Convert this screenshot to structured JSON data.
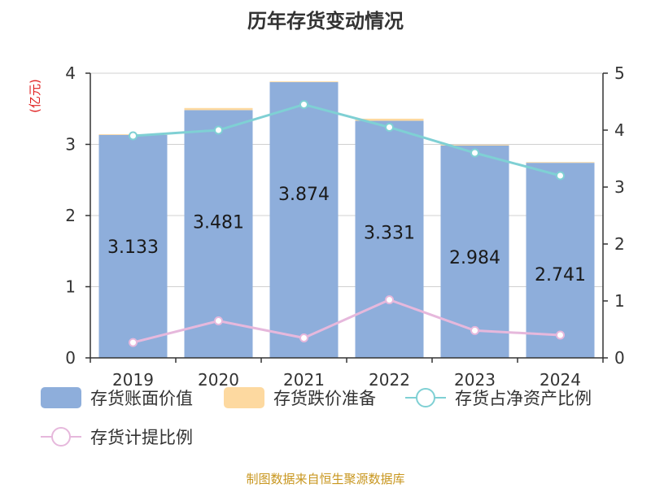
{
  "title": "历年存货变动情况",
  "footer": "制图数据来自恒生聚源数据库",
  "chart_data": {
    "type": "bar",
    "categories": [
      "2019",
      "2020",
      "2021",
      "2022",
      "2023",
      "2024"
    ],
    "y_left": {
      "unit": "(亿元)",
      "ylim": [
        0,
        4
      ],
      "ticks": [
        0,
        1,
        2,
        3,
        4
      ]
    },
    "y_right": {
      "ylim": [
        0,
        5
      ],
      "ticks": [
        0,
        1,
        2,
        3,
        4,
        5
      ]
    },
    "series": [
      {
        "name": "存货账面价值",
        "kind": "bar",
        "axis": "left",
        "color": "#8eaedb",
        "values": [
          3.133,
          3.481,
          3.874,
          3.331,
          2.984,
          2.741
        ],
        "labels": [
          "3.133",
          "3.481",
          "3.874",
          "3.331",
          "2.984",
          "2.741"
        ]
      },
      {
        "name": "存货跌价准备",
        "kind": "bar-stacked",
        "axis": "left",
        "color": "#fdd9a0",
        "values": [
          0.01,
          0.03,
          0.01,
          0.03,
          0.01,
          0.01
        ]
      },
      {
        "name": "存货占净资产比例",
        "kind": "line",
        "axis": "right",
        "color": "#7fd0d4",
        "values": [
          3.9,
          4.0,
          4.45,
          4.05,
          3.6,
          3.2
        ]
      },
      {
        "name": "存货计提比例",
        "kind": "line",
        "axis": "right",
        "color": "#e6b8dc",
        "values": [
          0.27,
          0.65,
          0.35,
          1.02,
          0.48,
          0.4
        ]
      }
    ],
    "grid": true,
    "legend_position": "bottom"
  }
}
